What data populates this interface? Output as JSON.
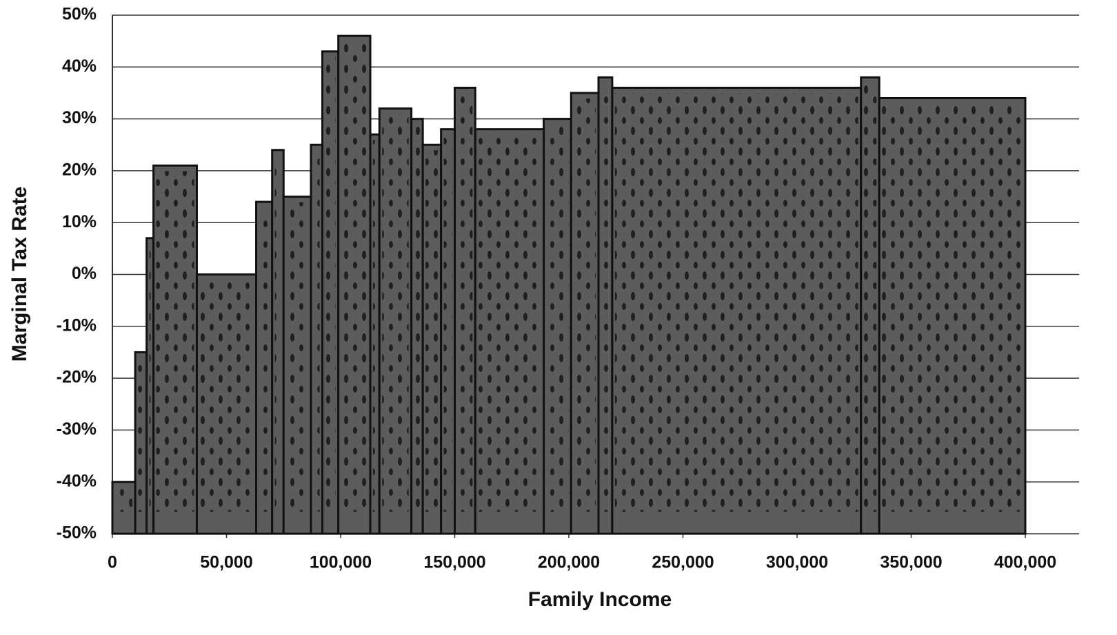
{
  "chart_data": {
    "type": "histogram",
    "x_label": "Family Income",
    "y_label": "Marginal Tax Rate",
    "bins": [
      0,
      10000,
      15000,
      18000,
      37000,
      63000,
      70000,
      75000,
      87000,
      92000,
      99000,
      113000,
      117000,
      131000,
      136000,
      144000,
      150000,
      159000,
      189000,
      201000,
      213000,
      219000,
      328000,
      336000,
      400000
    ],
    "values": [
      -40,
      -15,
      7,
      21,
      0,
      14,
      24,
      15,
      25,
      43,
      46,
      27,
      32,
      30,
      25,
      28,
      36,
      28,
      30,
      35,
      38,
      36,
      38,
      34
    ],
    "color": "#5c5c5c",
    "xlim": [
      0,
      400000
    ],
    "ylim": [
      -50,
      50
    ],
    "xticks": [
      0,
      {
        "value": 50000,
        "label": "50,000"
      },
      {
        "value": 100000,
        "label": "100,000"
      },
      {
        "value": 150000,
        "label": "150,000"
      },
      {
        "value": 200000,
        "label": "200,000"
      },
      {
        "value": 250000,
        "label": "250,000"
      },
      {
        "value": 300000,
        "label": "300,000"
      },
      {
        "value": 350000,
        "label": "350,000"
      },
      {
        "value": 400000,
        "label": "400,000"
      }
    ],
    "yticks": [
      {
        "value": -50,
        "label": "-50%"
      },
      {
        "value": -40,
        "label": "-40%"
      },
      {
        "value": -30,
        "label": "-30%"
      },
      {
        "value": -20,
        "label": "-20%"
      },
      {
        "value": -10,
        "label": "-10%"
      },
      {
        "value": 0,
        "label": "0%"
      },
      {
        "value": 10,
        "label": "10%"
      },
      {
        "value": 20,
        "label": "20%"
      },
      {
        "value": 30,
        "label": "30%"
      },
      {
        "value": 40,
        "label": "40%"
      },
      {
        "value": 50,
        "label": "50%"
      }
    ],
    "grid": true
  }
}
